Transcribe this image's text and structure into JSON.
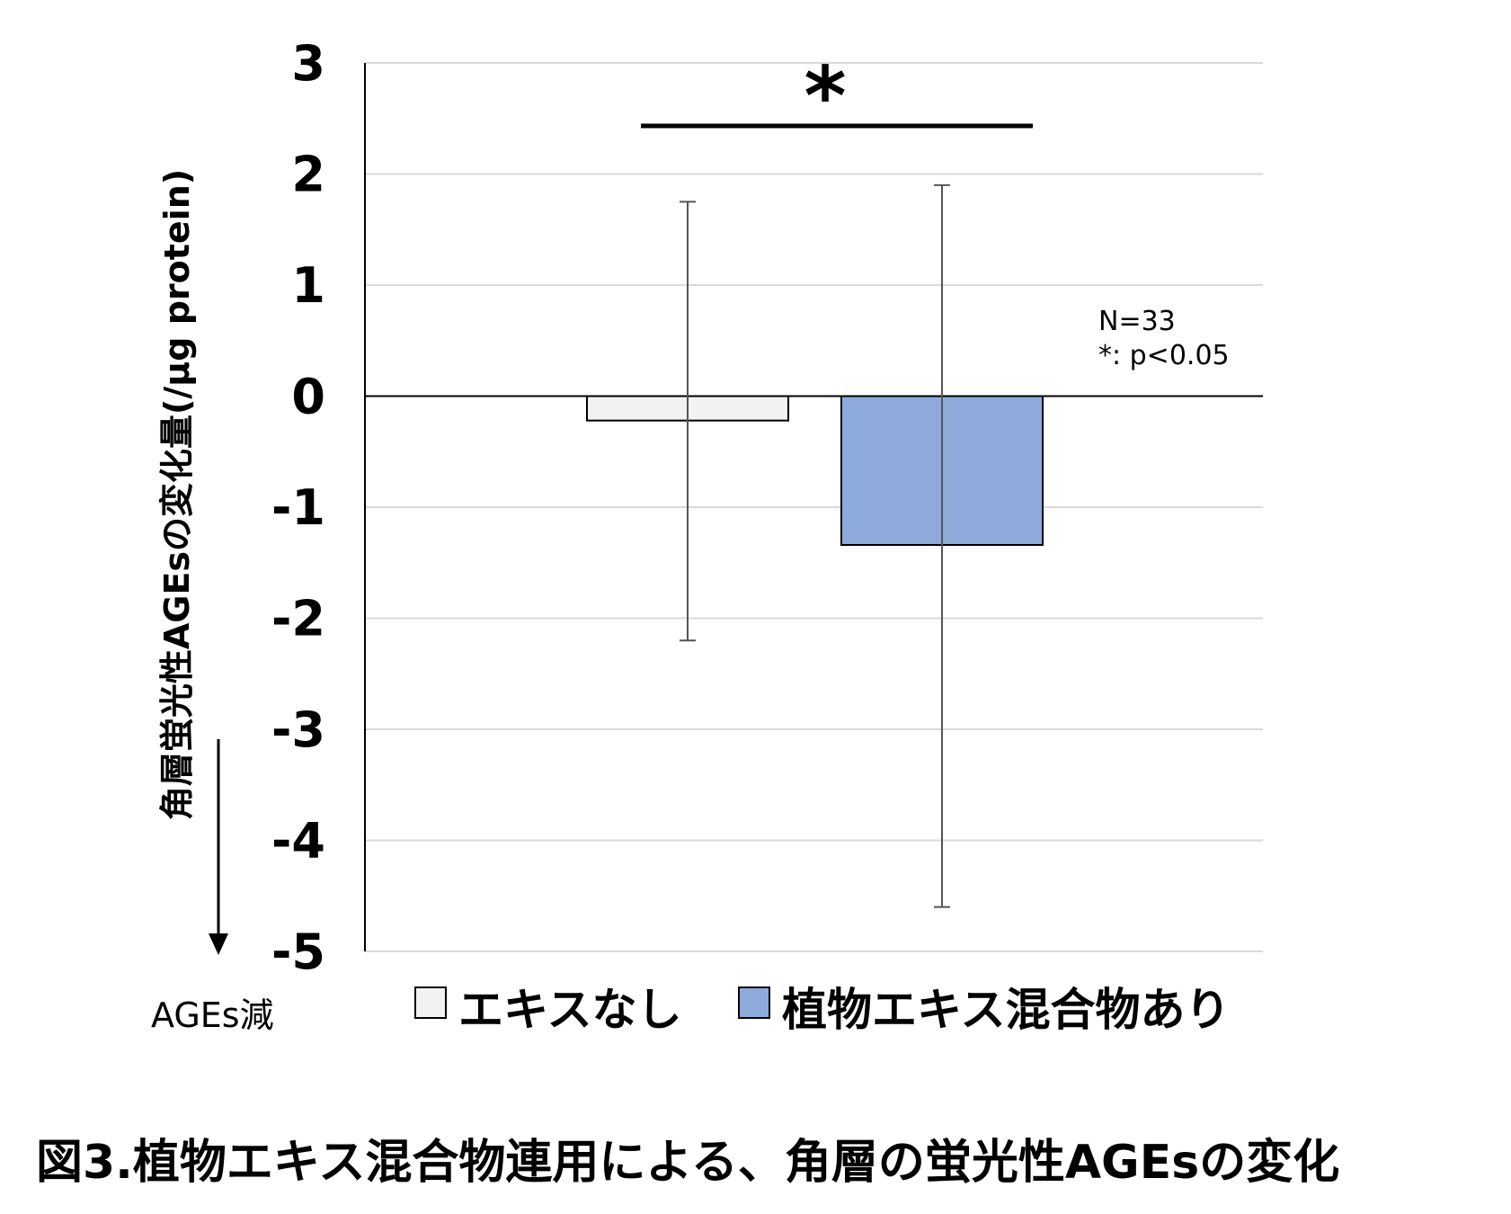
{
  "chart_data": {
    "type": "bar",
    "categories": [
      "エキスなし",
      "植物エキス混合物あり"
    ],
    "values": [
      -0.22,
      -1.34
    ],
    "error_bars": [
      {
        "upper": 1.75,
        "lower": -2.2
      },
      {
        "upper": 1.9,
        "lower": -4.6
      }
    ],
    "colors": [
      "#f2f2f2",
      "#8eaadb"
    ],
    "ylabel": "角層蛍光性AGEsの変化量(/μg protein)",
    "ylim": [
      -5,
      3
    ],
    "yticks": [
      3,
      2,
      1,
      0,
      -1,
      -2,
      -3,
      -4,
      -5
    ],
    "grid": true,
    "legend": [
      "エキスなし",
      "植物エキス混合物あり"
    ],
    "legend_position": "bottom",
    "significance_marker": "*",
    "annotation_lines": [
      "N=33",
      "*: p<0.05"
    ],
    "down_arrow_label": "AGEs減",
    "caption": "図3.植物エキス混合物連用による、角層の蛍光性AGEsの変化"
  }
}
